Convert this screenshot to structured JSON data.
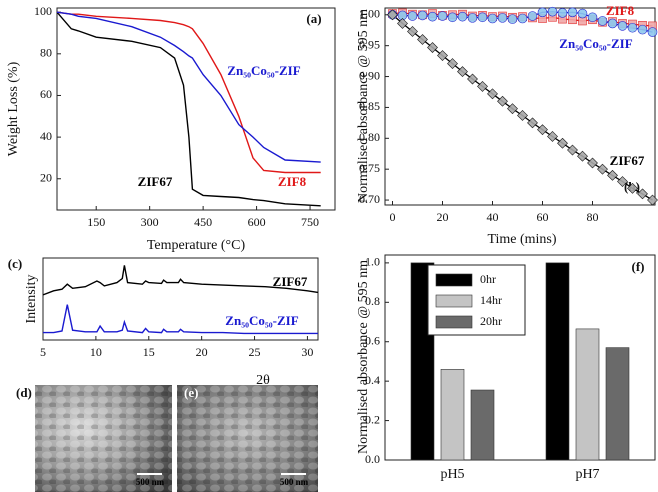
{
  "chart_data": [
    {
      "type": "line",
      "panel_label": "(a)",
      "xlabel": "Temperature (°C)",
      "ylabel": "Weight Loss (%)",
      "x": [
        40,
        80,
        100,
        150,
        250,
        330,
        370,
        395,
        410,
        420,
        450,
        500,
        550,
        590,
        620,
        680,
        780
      ],
      "series": [
        {
          "name": "ZIF67",
          "color": "#000000",
          "values": [
            100,
            92,
            91,
            88,
            86,
            83,
            78,
            65,
            40,
            15,
            12,
            11.5,
            11,
            10,
            9.5,
            8,
            7
          ]
        },
        {
          "name": "ZIF8",
          "color": "#e01818",
          "values": [
            100,
            99,
            99,
            98,
            97,
            96,
            95,
            94,
            93,
            92,
            85,
            70,
            50,
            30,
            24,
            23,
            23
          ]
        },
        {
          "name": "Zn₅₀Co₅₀-ZIF",
          "color": "#1a1ad0",
          "values": [
            100,
            99,
            98,
            97,
            93,
            88,
            84,
            81,
            79,
            78,
            70,
            60,
            46,
            40,
            35,
            29,
            28
          ]
        }
      ],
      "xlim": [
        40,
        820
      ],
      "xticks": [
        150,
        300,
        450,
        600,
        750
      ],
      "ylim": [
        5,
        102
      ],
      "yticks": [
        20,
        40,
        60,
        80,
        100
      ]
    },
    {
      "type": "scatter",
      "panel_label": "(b)",
      "xlabel": "Time (mins)",
      "ylabel": "Normalised absorbance @ 595 nm",
      "x": [
        0,
        4,
        8,
        12,
        16,
        20,
        24,
        28,
        32,
        36,
        40,
        44,
        48,
        52,
        56,
        60,
        64,
        68,
        72,
        76,
        80,
        84,
        88,
        92,
        96,
        100,
        104
      ],
      "series": [
        {
          "name": "ZIF8",
          "color": "#e01818",
          "marker": "square",
          "marker_color": "#f0a8a8",
          "values": [
            1.002,
            1.003,
            1.001,
            1.0,
            1.002,
            0.999,
            1.0,
            1.001,
            0.998,
            0.999,
            0.997,
            0.998,
            0.996,
            0.997,
            0.995,
            0.994,
            0.996,
            0.993,
            0.992,
            0.99,
            0.992,
            0.988,
            0.989,
            0.986,
            0.985,
            0.983,
            0.982
          ]
        },
        {
          "name": "Zn₅₀Co₅₀-ZIF",
          "color": "#1a1ad0",
          "marker": "circle",
          "marker_color": "#8ec8ee",
          "values": [
            1.0,
            0.999,
            0.998,
            0.999,
            0.997,
            0.998,
            0.996,
            0.997,
            0.995,
            0.996,
            0.994,
            0.995,
            0.993,
            0.994,
            0.998,
            1.004,
            1.005,
            1.003,
            1.004,
            1.002,
            0.996,
            0.99,
            0.986,
            0.982,
            0.979,
            0.976,
            0.972
          ]
        },
        {
          "name": "ZIF67",
          "color": "#000000",
          "marker": "diamond",
          "marker_color": "#a8a8a8",
          "values": [
            1.0,
            0.986,
            0.973,
            0.96,
            0.947,
            0.934,
            0.921,
            0.908,
            0.896,
            0.884,
            0.872,
            0.86,
            0.848,
            0.837,
            0.825,
            0.814,
            0.803,
            0.792,
            0.781,
            0.771,
            0.76,
            0.75,
            0.74,
            0.73,
            0.719,
            0.71,
            0.7
          ]
        }
      ],
      "xlim": [
        -3,
        105
      ],
      "xticks": [
        0,
        20,
        40,
        60,
        80
      ],
      "ylim": [
        0.692,
        1.011
      ],
      "yticks": [
        {
          "value": 0.7,
          "label": "0.70"
        },
        0.75,
        {
          "value": 0.8,
          "label": "0.80"
        },
        0.85,
        {
          "value": 0.9,
          "label": "0.90"
        },
        0.95,
        {
          "value": 1.0,
          "label": "1.00"
        }
      ]
    },
    {
      "type": "line",
      "panel_label": "(c)",
      "xlabel": "2θ",
      "ylabel": "Intensity",
      "x": [
        5,
        6,
        6.8,
        7.3,
        7.8,
        9,
        10.1,
        10.4,
        10.8,
        12,
        12.5,
        12.7,
        13,
        14.4,
        14.7,
        15,
        16.2,
        16.4,
        16.7,
        17.8,
        18,
        18.3,
        20,
        22,
        24,
        26,
        28,
        30,
        31
      ],
      "series": [
        {
          "name": "ZIF67",
          "color": "#000000",
          "values": [
            55,
            60,
            62,
            68,
            63,
            65,
            72,
            70,
            66,
            70,
            75,
            91,
            70,
            68,
            72,
            70,
            69,
            73,
            70,
            70,
            74,
            70,
            68,
            67,
            66,
            65,
            63,
            60,
            58
          ]
        },
        {
          "name": "Zn₅₀Co₅₀-ZIF",
          "color": "#1a1ad0",
          "values": [
            9,
            9,
            11,
            43,
            12,
            10,
            10,
            17,
            10,
            10,
            12,
            22,
            11,
            9,
            14,
            10,
            9,
            13,
            10,
            10,
            13,
            10,
            9,
            9,
            8,
            8,
            8,
            8,
            8
          ]
        }
      ],
      "xlim": [
        5,
        31
      ],
      "xticks": [
        5,
        10,
        15,
        20,
        25,
        30
      ],
      "ylim": [
        0,
        100
      ]
    },
    {
      "type": "bar",
      "panel_label": "(f)",
      "ylabel": "Normalised absorbance @ 595 nm",
      "categories": [
        "pH5",
        "pH7"
      ],
      "series": [
        {
          "name": "0hr",
          "color": "#000000",
          "values": [
            1.0,
            1.0
          ]
        },
        {
          "name": "14hr",
          "color": "#c4c4c4",
          "values": [
            0.46,
            0.665
          ]
        },
        {
          "name": "20hr",
          "color": "#6a6a6a",
          "values": [
            0.355,
            0.57
          ]
        }
      ],
      "ylim": [
        0,
        1.04
      ],
      "yticks": [
        {
          "value": 0,
          "label": "0.0"
        },
        0.2,
        0.4,
        0.6,
        0.8,
        {
          "value": 1.0,
          "label": "1.0"
        }
      ]
    }
  ],
  "images": [
    {
      "panel_label": "(d)",
      "scale_bar": "500 nm"
    },
    {
      "panel_label": "(e)",
      "scale_bar": "500 nm"
    }
  ]
}
